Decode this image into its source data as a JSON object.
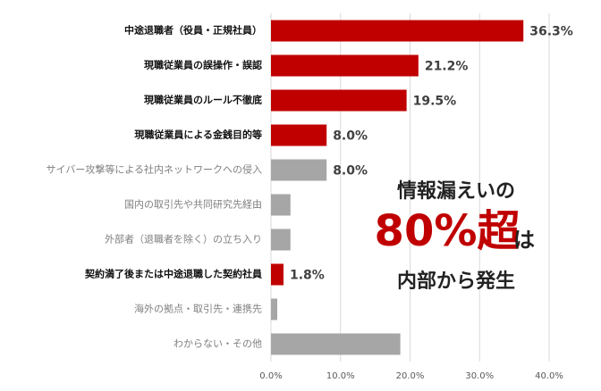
{
  "chart_data": {
    "type": "bar",
    "orientation": "horizontal",
    "categories": [
      "中途退職者（役員・正規社員）",
      "現職従業員の誤操作・誤認",
      "現職従業員のルール不徹底",
      "現職従業員による金銭目的等",
      "サイバー攻撃等による社内ネットワークへの侵入",
      "国内の取引先や共同研究先経由",
      "外部者（退職者を除く）の立ち入り",
      "契約満了後または中途退職した契約社員",
      "海外の拠点・取引先・連携先",
      "わからない・その他"
    ],
    "values": [
      36.3,
      21.2,
      19.5,
      8.0,
      8.0,
      2.8,
      2.8,
      1.8,
      0.9,
      18.6
    ],
    "value_labels": [
      "36.3%",
      "21.2%",
      "19.5%",
      "8.0%",
      "8.0%",
      null,
      null,
      "1.8%",
      null,
      null
    ],
    "colors": [
      "#c00000",
      "#c00000",
      "#c00000",
      "#c00000",
      "#a6a6a6",
      "#a6a6a6",
      "#a6a6a6",
      "#c00000",
      "#a6a6a6",
      "#a6a6a6"
    ],
    "highlight_color": "#c00000",
    "xlim": [
      0,
      40
    ],
    "xticks": [
      {
        "value": 0,
        "label": "0.0%"
      },
      {
        "value": 10,
        "label": "10.0%"
      },
      {
        "value": 20,
        "label": "20.0%"
      },
      {
        "value": 30,
        "label": "30.0%"
      },
      {
        "value": 40,
        "label": "40.0%"
      }
    ],
    "grid": true,
    "annotation": {
      "line1": "情報漏えいの",
      "big": "80%超",
      "suffix": "は",
      "line2": "内部から発生"
    }
  }
}
